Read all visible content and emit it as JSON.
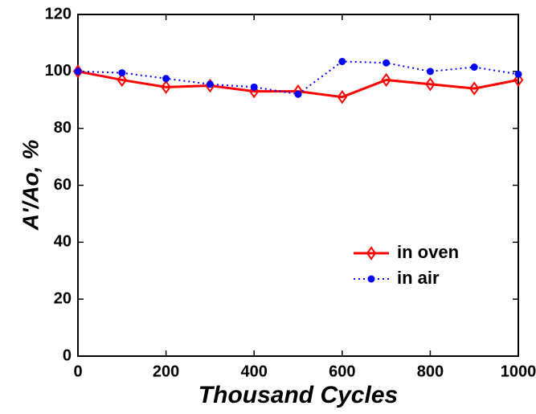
{
  "chart_data": {
    "type": "line",
    "xlabel": "Thousand Cycles",
    "ylabel": "A'/Ao, %",
    "x": [
      0,
      100,
      200,
      300,
      400,
      500,
      600,
      700,
      800,
      900,
      1000
    ],
    "series": [
      {
        "name": "in oven",
        "color": "#ff0000",
        "linestyle": "solid",
        "marker": "diamond",
        "values": [
          100,
          97,
          94.5,
          95,
          93,
          93,
          91,
          97,
          95.5,
          94,
          97
        ]
      },
      {
        "name": "in air",
        "color": "#0000ff",
        "linestyle": "dotted",
        "marker": "circle",
        "values": [
          100,
          99.5,
          97.5,
          95.5,
          94.5,
          92,
          103.5,
          103,
          100,
          101.5,
          99
        ]
      }
    ],
    "xlim": [
      0,
      1000
    ],
    "xticks": [
      0,
      200,
      400,
      600,
      800,
      1000
    ],
    "ylim": [
      0,
      120
    ],
    "yticks": [
      0,
      20,
      40,
      60,
      80,
      100,
      120
    ],
    "grid": false,
    "legend_position": "right"
  }
}
